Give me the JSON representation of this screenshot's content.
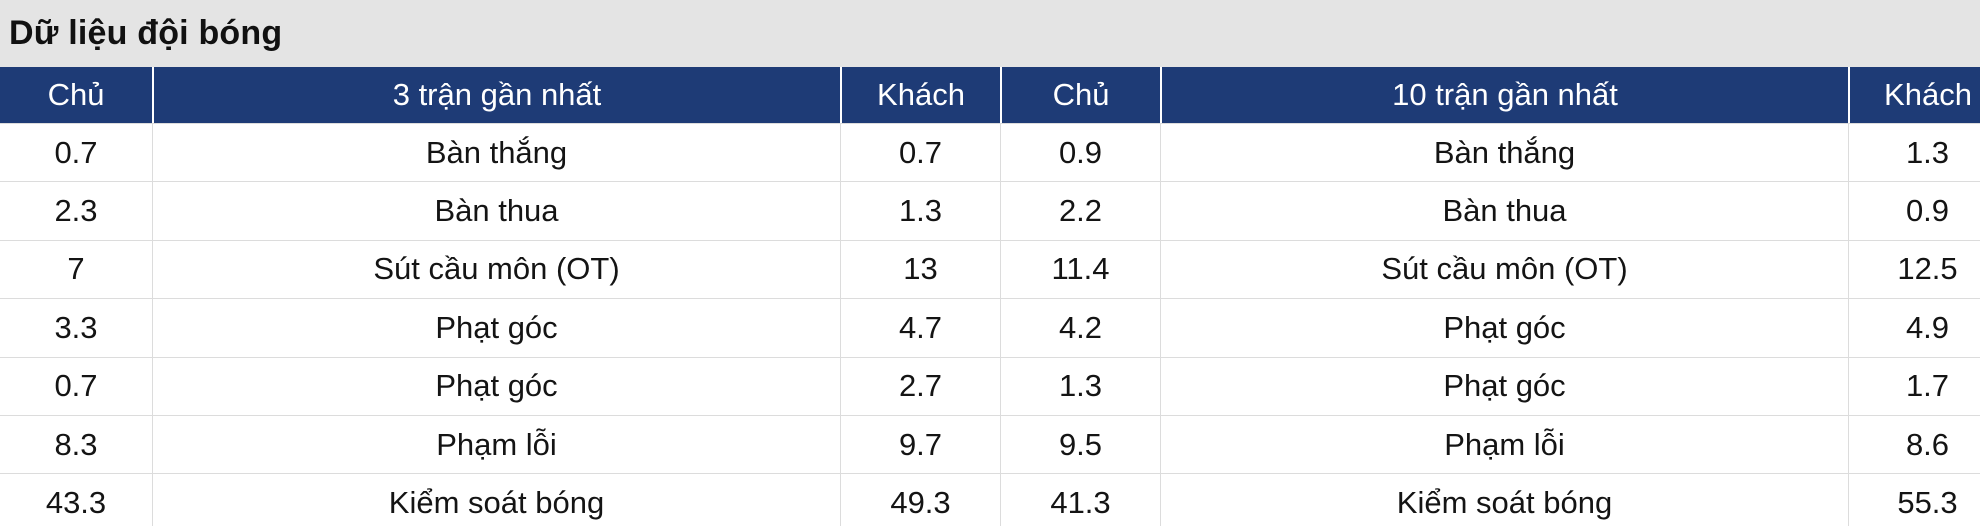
{
  "title": "Dữ liệu đội bóng",
  "table": {
    "header": [
      "Chủ",
      "3 trận gần nhất",
      "Khách",
      "Chủ",
      "10 trận gần nhất",
      "Khách"
    ],
    "rows": [
      [
        "0.7",
        "Bàn thắng",
        "0.7",
        "0.9",
        "Bàn thắng",
        "1.3"
      ],
      [
        "2.3",
        "Bàn thua",
        "1.3",
        "2.2",
        "Bàn thua",
        "0.9"
      ],
      [
        "7",
        "Sút cầu môn (OT)",
        "13",
        "11.4",
        "Sút cầu môn (OT)",
        "12.5"
      ],
      [
        "3.3",
        "Phạt góc",
        "4.7",
        "4.2",
        "Phạt góc",
        "4.9"
      ],
      [
        "0.7",
        "Phạt góc",
        "2.7",
        "1.3",
        "Phạt góc",
        "1.7"
      ],
      [
        "8.3",
        "Phạm lỗi",
        "9.7",
        "9.5",
        "Phạm lỗi",
        "8.6"
      ],
      [
        "43.3",
        "Kiểm soát bóng",
        "49.3",
        "41.3",
        "Kiểm soát bóng",
        "55.3"
      ]
    ]
  },
  "colors": {
    "header_bg": "#1e3b76",
    "title_bg": "#e4e4e4",
    "grid_border": "#dcdcdc",
    "header_text": "#ffffff",
    "body_text": "#141414"
  }
}
